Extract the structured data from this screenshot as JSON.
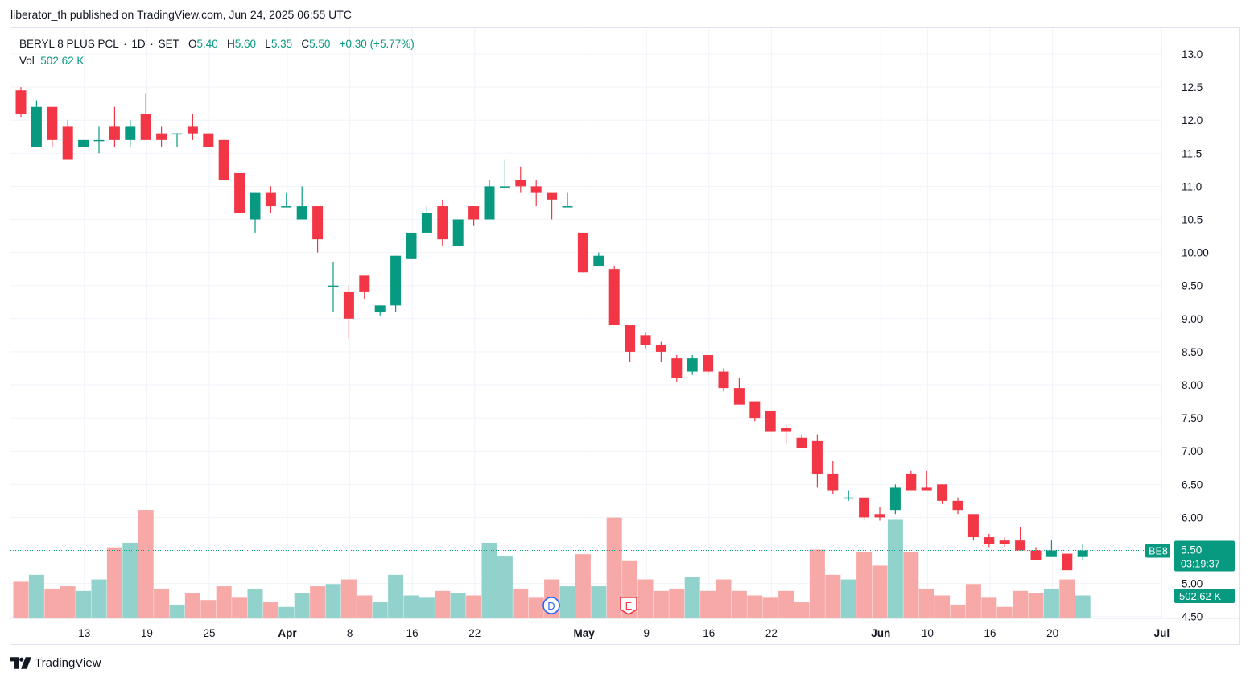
{
  "header": {
    "publish_text": "liberator_th published on TradingView.com, Jun 24, 2025 06:55 UTC"
  },
  "legend": {
    "symbol": "BERYL 8 PLUS PCL",
    "interval": "1D",
    "exchange": "SET",
    "open_label": "O",
    "open": "5.40",
    "high_label": "H",
    "high": "5.60",
    "low_label": "L",
    "low": "5.35",
    "close_label": "C",
    "close": "5.50",
    "change": "+0.30 (+5.77%)",
    "vol_label": "Vol",
    "vol_value": "502.62 K"
  },
  "price_badge": {
    "ticker": "BE8",
    "price": "5.50",
    "countdown": "03:19:37",
    "volume": "502.62 K"
  },
  "event_markers": [
    {
      "letter": "D",
      "after_date": "May 1"
    },
    {
      "letter": "E",
      "after_date": "May 9"
    }
  ],
  "footer": {
    "brand": "TradingView"
  },
  "colors": {
    "up": "#089981",
    "down": "#f23645",
    "up_vol": "#92d2cc",
    "down_vol": "#f7a9a7",
    "grid": "#f0f3fa"
  },
  "chart_data": {
    "type": "candlestick",
    "title": "BERYL 8 PLUS PCL · 1D · SET",
    "y_axis": {
      "side": "right",
      "ylim": [
        4.5,
        13.1
      ],
      "ticks": [
        "13.0",
        "12.5",
        "12.0",
        "11.5",
        "11.0",
        "10.5",
        "10.00",
        "9.50",
        "9.00",
        "8.50",
        "8.00",
        "7.50",
        "7.00",
        "6.50",
        "6.00",
        "5.50",
        "5.00",
        "4.50"
      ]
    },
    "x_axis": {
      "ticks": [
        {
          "label": "13",
          "bar": 2
        },
        {
          "label": "19",
          "bar": 6
        },
        {
          "label": "25",
          "bar": 10
        },
        {
          "label": "Apr",
          "bar": 15
        },
        {
          "label": "8",
          "bar": 19
        },
        {
          "label": "16",
          "bar": 23
        },
        {
          "label": "22",
          "bar": 27
        },
        {
          "label": "May",
          "bar": 34
        },
        {
          "label": "9",
          "bar": 38
        },
        {
          "label": "16",
          "bar": 42
        },
        {
          "label": "22",
          "bar": 46
        },
        {
          "label": "Jun",
          "bar": 53
        },
        {
          "label": "10",
          "bar": 56
        },
        {
          "label": "16",
          "bar": 60
        },
        {
          "label": "20",
          "bar": 64
        },
        {
          "label": "Jul",
          "bar": 71
        }
      ]
    },
    "last_price": 5.5,
    "candles": [
      {
        "o": 12.45,
        "h": 12.5,
        "l": 12.05,
        "c": 12.1,
        "v": 5.15
      },
      {
        "o": 11.6,
        "h": 12.3,
        "l": 11.6,
        "c": 12.2,
        "v": 5.3
      },
      {
        "o": 12.2,
        "h": 12.2,
        "l": 11.6,
        "c": 11.7,
        "v": 5.0
      },
      {
        "o": 11.9,
        "h": 12.0,
        "l": 11.4,
        "c": 11.4,
        "v": 5.05
      },
      {
        "o": 11.6,
        "h": 11.7,
        "l": 11.6,
        "c": 11.7,
        "v": 4.95
      },
      {
        "o": 11.7,
        "h": 11.9,
        "l": 11.5,
        "c": 11.7,
        "v": 5.2
      },
      {
        "o": 11.9,
        "h": 12.2,
        "l": 11.6,
        "c": 11.7,
        "v": 5.9
      },
      {
        "o": 11.7,
        "h": 12.0,
        "l": 11.6,
        "c": 11.9,
        "v": 6.0
      },
      {
        "o": 12.1,
        "h": 12.4,
        "l": 11.7,
        "c": 11.7,
        "v": 6.7
      },
      {
        "o": 11.8,
        "h": 11.9,
        "l": 11.6,
        "c": 11.7,
        "v": 5.0
      },
      {
        "o": 11.8,
        "h": 11.8,
        "l": 11.6,
        "c": 11.8,
        "v": 4.65
      },
      {
        "o": 11.9,
        "h": 12.1,
        "l": 11.7,
        "c": 11.8,
        "v": 4.9
      },
      {
        "o": 11.8,
        "h": 11.8,
        "l": 11.6,
        "c": 11.6,
        "v": 4.75
      },
      {
        "o": 11.7,
        "h": 11.7,
        "l": 11.1,
        "c": 11.1,
        "v": 5.05
      },
      {
        "o": 11.2,
        "h": 11.2,
        "l": 10.6,
        "c": 10.6,
        "v": 4.8
      },
      {
        "o": 10.5,
        "h": 10.9,
        "l": 10.3,
        "c": 10.9,
        "v": 5.0
      },
      {
        "o": 10.9,
        "h": 11.0,
        "l": 10.6,
        "c": 10.7,
        "v": 4.7
      },
      {
        "o": 10.7,
        "h": 10.9,
        "l": 10.7,
        "c": 10.7,
        "v": 4.6
      },
      {
        "o": 10.5,
        "h": 11.0,
        "l": 10.5,
        "c": 10.7,
        "v": 4.9
      },
      {
        "o": 10.7,
        "h": 10.7,
        "l": 10.0,
        "c": 10.2,
        "v": 5.05
      },
      {
        "o": 9.5,
        "h": 9.85,
        "l": 9.1,
        "c": 9.5,
        "v": 5.1
      },
      {
        "o": 9.4,
        "h": 9.5,
        "l": 8.7,
        "c": 9.0,
        "v": 5.2
      },
      {
        "o": 9.65,
        "h": 9.65,
        "l": 9.3,
        "c": 9.4,
        "v": 4.85
      },
      {
        "o": 9.1,
        "h": 9.2,
        "l": 9.05,
        "c": 9.2,
        "v": 4.7
      },
      {
        "o": 9.2,
        "h": 9.95,
        "l": 9.1,
        "c": 9.95,
        "v": 5.3
      },
      {
        "o": 9.9,
        "h": 10.3,
        "l": 9.9,
        "c": 10.3,
        "v": 4.85
      },
      {
        "o": 10.3,
        "h": 10.7,
        "l": 10.3,
        "c": 10.6,
        "v": 4.8
      },
      {
        "o": 10.7,
        "h": 10.8,
        "l": 10.1,
        "c": 10.2,
        "v": 4.95
      },
      {
        "o": 10.1,
        "h": 10.5,
        "l": 10.1,
        "c": 10.5,
        "v": 4.9
      },
      {
        "o": 10.7,
        "h": 10.7,
        "l": 10.4,
        "c": 10.5,
        "v": 4.85
      },
      {
        "o": 10.5,
        "h": 11.1,
        "l": 10.5,
        "c": 11.0,
        "v": 6.0
      },
      {
        "o": 11.0,
        "h": 11.4,
        "l": 10.95,
        "c": 11.0,
        "v": 5.7
      },
      {
        "o": 11.1,
        "h": 11.3,
        "l": 10.9,
        "c": 11.0,
        "v": 5.0
      },
      {
        "o": 11.0,
        "h": 11.1,
        "l": 10.7,
        "c": 10.9,
        "v": 4.8
      },
      {
        "o": 10.9,
        "h": 10.9,
        "l": 10.5,
        "c": 10.8,
        "v": 5.2
      },
      {
        "o": 10.7,
        "h": 10.9,
        "l": 10.7,
        "c": 10.7,
        "v": 5.05
      },
      {
        "o": 10.3,
        "h": 10.3,
        "l": 9.7,
        "c": 9.7,
        "v": 5.75
      },
      {
        "o": 9.8,
        "h": 10.0,
        "l": 9.8,
        "c": 9.95,
        "v": 5.05
      },
      {
        "o": 9.75,
        "h": 9.8,
        "l": 8.9,
        "c": 8.9,
        "v": 6.55
      },
      {
        "o": 8.9,
        "h": 8.9,
        "l": 8.35,
        "c": 8.5,
        "v": 5.6
      },
      {
        "o": 8.75,
        "h": 8.8,
        "l": 8.55,
        "c": 8.6,
        "v": 5.2
      },
      {
        "o": 8.6,
        "h": 8.65,
        "l": 8.35,
        "c": 8.5,
        "v": 4.95
      },
      {
        "o": 8.4,
        "h": 8.45,
        "l": 8.05,
        "c": 8.1,
        "v": 5.0
      },
      {
        "o": 8.2,
        "h": 8.45,
        "l": 8.15,
        "c": 8.4,
        "v": 5.25
      },
      {
        "o": 8.45,
        "h": 8.45,
        "l": 8.15,
        "c": 8.2,
        "v": 4.95
      },
      {
        "o": 8.2,
        "h": 8.25,
        "l": 7.9,
        "c": 7.95,
        "v": 5.2
      },
      {
        "o": 7.95,
        "h": 8.1,
        "l": 7.7,
        "c": 7.7,
        "v": 4.95
      },
      {
        "o": 7.75,
        "h": 7.75,
        "l": 7.45,
        "c": 7.5,
        "v": 4.85
      },
      {
        "o": 7.6,
        "h": 7.6,
        "l": 7.3,
        "c": 7.3,
        "v": 4.8
      },
      {
        "o": 7.35,
        "h": 7.4,
        "l": 7.1,
        "c": 7.3,
        "v": 4.95
      },
      {
        "o": 7.2,
        "h": 7.25,
        "l": 7.05,
        "c": 7.05,
        "v": 4.7
      },
      {
        "o": 7.15,
        "h": 7.25,
        "l": 6.45,
        "c": 6.65,
        "v": 5.85
      },
      {
        "o": 6.65,
        "h": 6.85,
        "l": 6.35,
        "c": 6.4,
        "v": 5.3
      },
      {
        "o": 6.3,
        "h": 6.4,
        "l": 6.25,
        "c": 6.3,
        "v": 5.2
      },
      {
        "o": 6.3,
        "h": 6.3,
        "l": 5.95,
        "c": 6.0,
        "v": 5.8
      },
      {
        "o": 6.05,
        "h": 6.15,
        "l": 5.95,
        "c": 6.0,
        "v": 5.5
      },
      {
        "o": 6.1,
        "h": 6.5,
        "l": 6.05,
        "c": 6.45,
        "v": 6.5
      },
      {
        "o": 6.65,
        "h": 6.7,
        "l": 6.4,
        "c": 6.4,
        "v": 5.8
      },
      {
        "o": 6.45,
        "h": 6.7,
        "l": 6.4,
        "c": 6.4,
        "v": 5.0
      },
      {
        "o": 6.5,
        "h": 6.5,
        "l": 6.2,
        "c": 6.25,
        "v": 4.85
      },
      {
        "o": 6.25,
        "h": 6.3,
        "l": 6.05,
        "c": 6.1,
        "v": 4.65
      },
      {
        "o": 6.05,
        "h": 6.05,
        "l": 5.65,
        "c": 5.7,
        "v": 5.1
      },
      {
        "o": 5.7,
        "h": 5.75,
        "l": 5.55,
        "c": 5.6,
        "v": 4.8
      },
      {
        "o": 5.65,
        "h": 5.7,
        "l": 5.55,
        "c": 5.6,
        "v": 4.6
      },
      {
        "o": 5.65,
        "h": 5.85,
        "l": 5.5,
        "c": 5.5,
        "v": 4.95
      },
      {
        "o": 5.5,
        "h": 5.55,
        "l": 5.35,
        "c": 5.35,
        "v": 4.9
      },
      {
        "o": 5.4,
        "h": 5.65,
        "l": 5.4,
        "c": 5.5,
        "v": 5.0
      },
      {
        "o": 5.45,
        "h": 5.45,
        "l": 5.2,
        "c": 5.2,
        "v": 5.2
      },
      {
        "o": 5.4,
        "h": 5.6,
        "l": 5.35,
        "c": 5.5,
        "v": 4.85
      }
    ]
  }
}
